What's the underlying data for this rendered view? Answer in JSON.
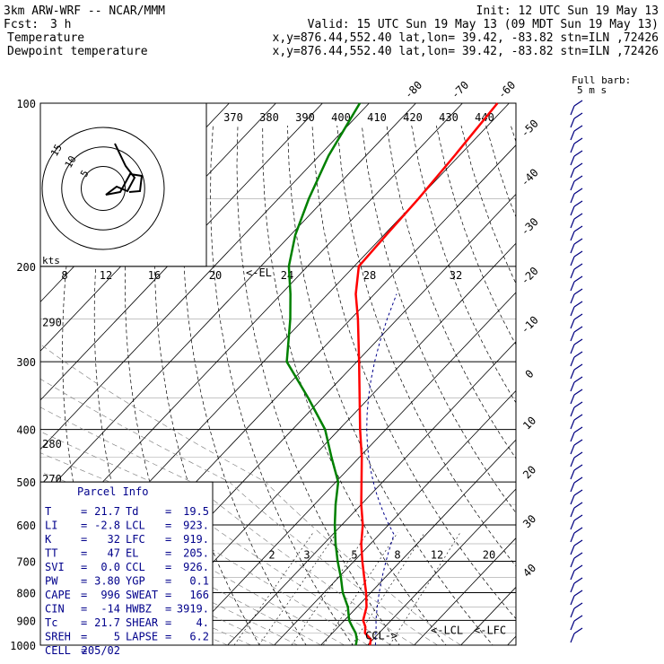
{
  "header": {
    "model": "3km ARW-WRF -- NCAR/MMM",
    "init": "Init: 12 UTC Sun 19 May 13",
    "fcst_label": "Fcst:",
    "fcst_value": "3 h",
    "valid": "Valid: 15 UTC Sun 19 May 13 (09 MDT Sun 19 May 13)",
    "temp_label": "Temperature",
    "dew_label": "Dewpoint temperature",
    "location": "x,y=876.44,552.40   lat,lon= 39.42, -83.82  stn=ILN ,72426"
  },
  "colors": {
    "temperature": "#ff0000",
    "dewpoint": "#008000",
    "barbs": "#000080",
    "info": "#00008b",
    "grid": "#000000"
  },
  "chart_data": {
    "type": "line",
    "chart_kind": "skew-T log-p sounding",
    "pressure_levels": [
      "100",
      "200",
      "300",
      "400",
      "500",
      "600",
      "700",
      "800",
      "900",
      "1000"
    ],
    "isotherm_labels": [
      "-80",
      "-70",
      "-60",
      "-50",
      "-40",
      "-30",
      "-20",
      "-10",
      "0",
      "10",
      "20",
      "30",
      "40"
    ],
    "theta_labels": [
      "370",
      "380",
      "390",
      "400",
      "410",
      "420",
      "430",
      "440"
    ],
    "theta_side_labels": [
      "290",
      "280",
      "270"
    ],
    "mixing_ratio_labels": [
      "2",
      "3",
      "5",
      "8",
      "12",
      "20"
    ],
    "hodo_speed_labels": [
      "8",
      "12",
      "16",
      "20",
      "24",
      "28",
      "32"
    ],
    "hodo_unit": "kts",
    "hodo_ring_labels": [
      "15",
      "10",
      "5"
    ],
    "barb_legend": [
      "Full barb:",
      "5 m s"
    ],
    "series": [
      {
        "name": "Temperature",
        "points": [
          [
            1000,
            20.5
          ],
          [
            975,
            19.5
          ],
          [
            950,
            17.0
          ],
          [
            925,
            15.8
          ],
          [
            900,
            14.0
          ],
          [
            850,
            12.0
          ],
          [
            800,
            9.0
          ],
          [
            750,
            5.5
          ],
          [
            700,
            1.8
          ],
          [
            650,
            -2.0
          ],
          [
            600,
            -5.5
          ],
          [
            550,
            -10.0
          ],
          [
            500,
            -14.5
          ],
          [
            450,
            -19.5
          ],
          [
            400,
            -25.5
          ],
          [
            350,
            -32.0
          ],
          [
            300,
            -39.5
          ],
          [
            250,
            -48.5
          ],
          [
            225,
            -54.0
          ],
          [
            200,
            -59.0
          ],
          [
            175,
            -59.5
          ],
          [
            150,
            -60.0
          ],
          [
            125,
            -61.0
          ],
          [
            100,
            -62.5
          ]
        ]
      },
      {
        "name": "Dewpoint temperature",
        "points": [
          [
            1000,
            17.5
          ],
          [
            975,
            16.5
          ],
          [
            950,
            15.0
          ],
          [
            925,
            13.0
          ],
          [
            900,
            11.0
          ],
          [
            850,
            8.0
          ],
          [
            800,
            4.0
          ],
          [
            750,
            0.5
          ],
          [
            700,
            -3.5
          ],
          [
            650,
            -7.5
          ],
          [
            600,
            -11.5
          ],
          [
            550,
            -15.5
          ],
          [
            500,
            -19.5
          ],
          [
            450,
            -26.0
          ],
          [
            400,
            -33.0
          ],
          [
            350,
            -43.0
          ],
          [
            300,
            -55.0
          ],
          [
            250,
            -63.0
          ],
          [
            225,
            -68.0
          ],
          [
            200,
            -74.0
          ],
          [
            175,
            -79.0
          ],
          [
            150,
            -83.5
          ],
          [
            125,
            -88.0
          ],
          [
            100,
            -92.0
          ]
        ]
      }
    ],
    "annotations": [
      "<-EL",
      "CCL->",
      "<-LCL",
      "<-LFC"
    ],
    "ylim": [
      100,
      1050
    ],
    "xlim": [
      -40,
      50
    ],
    "grid": true
  },
  "parcel_info": {
    "title": "Parcel Info",
    "rows": [
      [
        "T",
        "=",
        "21.7",
        "Td",
        "=",
        "19.5"
      ],
      [
        "LI",
        "=",
        "-2.8",
        "LCL",
        "=",
        "923."
      ],
      [
        "K",
        "=",
        "32",
        "LFC",
        "=",
        "919."
      ],
      [
        "TT",
        "=",
        "47",
        "EL",
        "=",
        "205."
      ],
      [
        "SVI",
        "=",
        "0.0",
        "CCL",
        "=",
        "926."
      ],
      [
        "PW",
        "=",
        "3.80",
        "YGP",
        "=",
        "0.1"
      ],
      [
        "CAPE",
        "=",
        "996",
        "SWEAT",
        "=",
        "166"
      ],
      [
        "CIN",
        "=",
        "-14",
        "HWBZ",
        "=",
        "3919."
      ],
      [
        "Tc",
        "=",
        "21.7",
        "SHEAR",
        "=",
        "4."
      ],
      [
        "SREH",
        "=",
        "5",
        "LAPSE",
        "=",
        "6.2"
      ],
      [
        "CELL",
        "=",
        "205/02",
        "",
        "",
        ""
      ]
    ]
  }
}
